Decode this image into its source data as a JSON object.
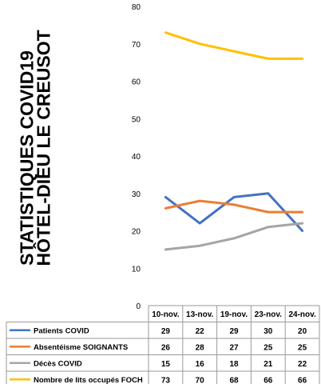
{
  "title_lines": [
    "STATISTIQUES COVID19",
    "HÔTEL-DIEU LE CREUSOT"
  ],
  "chart_data": {
    "type": "line",
    "title": "STATISTIQUES COVID19 HÔTEL-DIEU LE CREUSOT",
    "categories": [
      "10-nov.",
      "13-nov.",
      "19-nov.",
      "23-nov.",
      "24-nov."
    ],
    "ylim": [
      0,
      80
    ],
    "yticks": [
      0,
      10,
      20,
      30,
      40,
      50,
      60,
      70,
      80
    ],
    "grid": false,
    "legend": "data-table-below",
    "series": [
      {
        "name": "Patients COVID",
        "color": "#4472C4",
        "values": [
          29,
          22,
          29,
          30,
          20
        ]
      },
      {
        "name": "Absentéisme SOIGNANTS",
        "color": "#ED7D31",
        "values": [
          26,
          28,
          27,
          25,
          25
        ]
      },
      {
        "name": "Décès COVID",
        "color": "#A5A5A5",
        "values": [
          15,
          16,
          18,
          21,
          22
        ]
      },
      {
        "name": "Nombre de lits occupés FOCH",
        "color": "#FFC000",
        "values": [
          73,
          70,
          68,
          66,
          66
        ]
      }
    ]
  }
}
